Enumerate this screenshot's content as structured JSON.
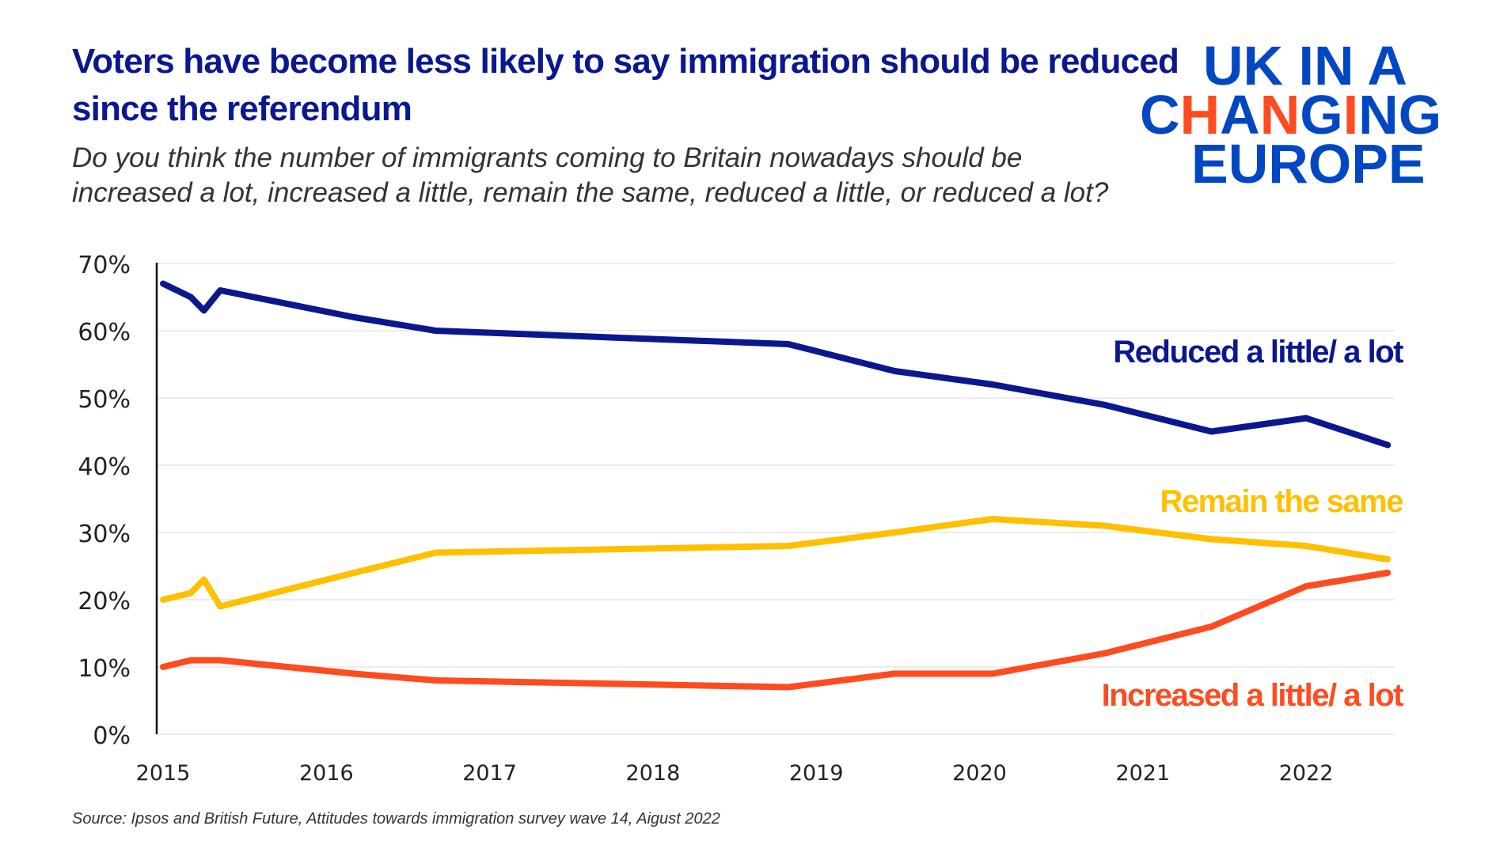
{
  "header": {
    "title": "Voters have become less likely to say immigration should be reduced since the referendum",
    "subtitle": "Do you think the number of immigrants coming to Britain nowadays should be increased a lot, increased a little, remain the same, reduced a little, or reduced a lot?"
  },
  "logo": {
    "line1": "UK IN A",
    "line2_a": "CHANGING",
    "line3": "EUROPE",
    "color": "#0047c4",
    "accent": "#ff4b1f"
  },
  "footer": {
    "source": "Source: Ipsos and British Future, Attitudes towards immigration survey wave 14, Aigust 2022"
  },
  "chart_data": {
    "type": "line",
    "title": "Voters have become less likely to say immigration should be reduced since the referendum",
    "xlabel": "",
    "ylabel": "",
    "x_ticks": [
      "2015",
      "2016",
      "2017",
      "2018",
      "2019",
      "2020",
      "2021",
      "2022"
    ],
    "y_ticks": [
      "0%",
      "10%",
      "20%",
      "30%",
      "40%",
      "50%",
      "60%",
      "70%"
    ],
    "ylim": [
      0,
      70
    ],
    "xlim": [
      2015,
      2022.5
    ],
    "grid": true,
    "legend": "direct labels at right",
    "x": [
      2015.0,
      2015.17,
      2015.25,
      2015.35,
      2016.17,
      2016.67,
      2018.83,
      2019.48,
      2020.08,
      2020.76,
      2021.42,
      2022.0,
      2022.5
    ],
    "series": [
      {
        "name": "Reduced a little/ a lot",
        "color": "#0a1890",
        "values": [
          67,
          65,
          63,
          66,
          62,
          60,
          58,
          54,
          52,
          49,
          45,
          47,
          43
        ]
      },
      {
        "name": "Remain the same",
        "color": "#ffc000",
        "values": [
          20,
          21,
          23,
          19,
          24,
          27,
          28,
          30,
          32,
          31,
          29,
          28,
          26
        ]
      },
      {
        "name": "Increased a little/ a lot",
        "color": "#ff4b1f",
        "values": [
          10,
          11,
          11,
          11,
          9,
          8,
          7,
          9,
          9,
          12,
          16,
          22,
          24
        ]
      }
    ]
  }
}
